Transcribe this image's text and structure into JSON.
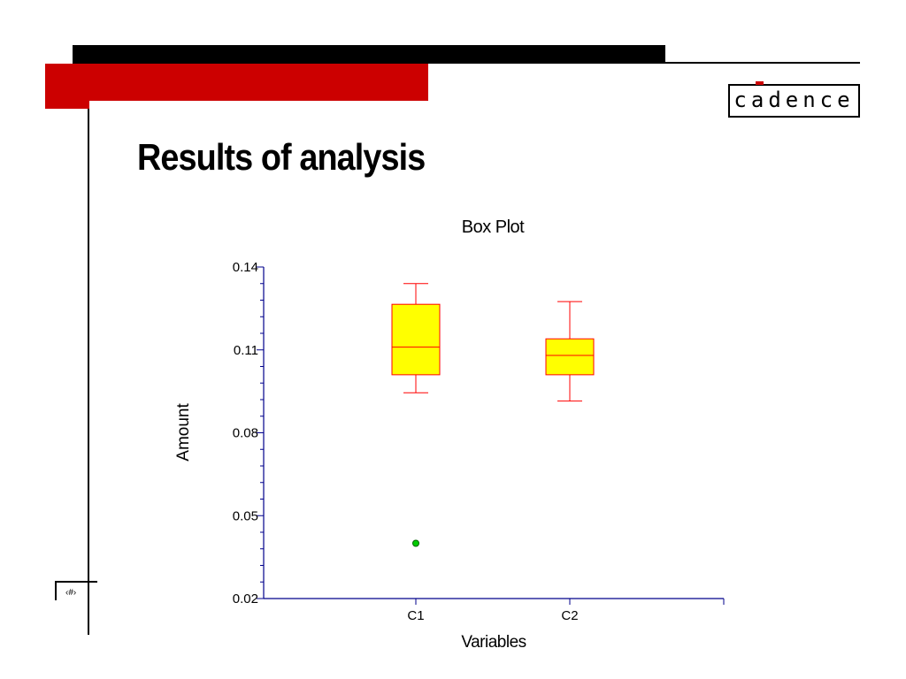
{
  "slide": {
    "title": "Results of analysis",
    "page_number": "‹#›"
  },
  "logo": {
    "text": "cadence"
  },
  "colors": {
    "brand_red": "#cc0000",
    "box_fill": "#ffff00",
    "box_stroke": "#ff0000",
    "axis": "#00008b",
    "outlier": "#00cc00"
  },
  "chart_data": {
    "type": "box",
    "title": "Box Plot",
    "xlabel": "Variables",
    "ylabel": "Amount",
    "ylim": [
      0.02,
      0.14
    ],
    "y_ticks": [
      "0.02",
      "0.05",
      "0.08",
      "0.11",
      "0.14"
    ],
    "categories": [
      "C1",
      "C2"
    ],
    "boxes": [
      {
        "name": "C1",
        "whisker_low": 0.0945,
        "q1": 0.101,
        "median": 0.111,
        "q3": 0.1265,
        "whisker_high": 0.134,
        "outliers": [
          0.04
        ]
      },
      {
        "name": "C2",
        "whisker_low": 0.0915,
        "q1": 0.101,
        "median": 0.108,
        "q3": 0.114,
        "whisker_high": 0.1275,
        "outliers": []
      }
    ]
  }
}
